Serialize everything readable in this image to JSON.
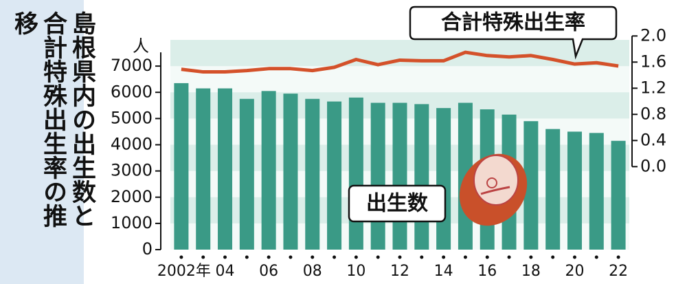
{
  "chart_data": {
    "type": "bar-line",
    "title": "島根県内の出生数と合計特殊出生率の推移",
    "y_unit": "人",
    "categories": [
      "2002年",
      null,
      "04",
      null,
      "06",
      null,
      "08",
      null,
      "10",
      null,
      "12",
      null,
      "14",
      null,
      "16",
      null,
      "18",
      null,
      "20",
      null,
      "22"
    ],
    "series": [
      {
        "name": "出生数",
        "type": "bar",
        "color": "#3a9a86",
        "values": [
          6350,
          6150,
          6150,
          5750,
          6050,
          5950,
          5750,
          5650,
          5800,
          5600,
          5600,
          5550,
          5400,
          5600,
          5350,
          5150,
          4900,
          4600,
          4500,
          4450,
          4150
        ]
      },
      {
        "name": "合計特殊出生率",
        "type": "line",
        "axis": "y2",
        "color": "#d4512a",
        "values": [
          1.49,
          1.45,
          1.45,
          1.47,
          1.5,
          1.5,
          1.47,
          1.52,
          1.64,
          1.56,
          1.63,
          1.62,
          1.62,
          1.75,
          1.7,
          1.68,
          1.7,
          1.64,
          1.57,
          1.59,
          1.54
        ]
      }
    ],
    "ylim": [
      0,
      8000
    ],
    "yticks": [
      0,
      1000,
      2000,
      3000,
      4000,
      5000,
      6000,
      7000
    ],
    "y2lim": [
      -1.27,
      1.94
    ],
    "y2ticks": [
      {
        "value": 0,
        "label": "0.0"
      },
      {
        "value": 0.4,
        "label": "0.4"
      },
      {
        "value": 0.8,
        "label": "0.8"
      },
      {
        "value": 1.2,
        "label": "1.2"
      },
      {
        "value": 1.6,
        "label": "1.6"
      },
      {
        "value": 2,
        "label": "2.0"
      }
    ],
    "grid": true
  }
}
